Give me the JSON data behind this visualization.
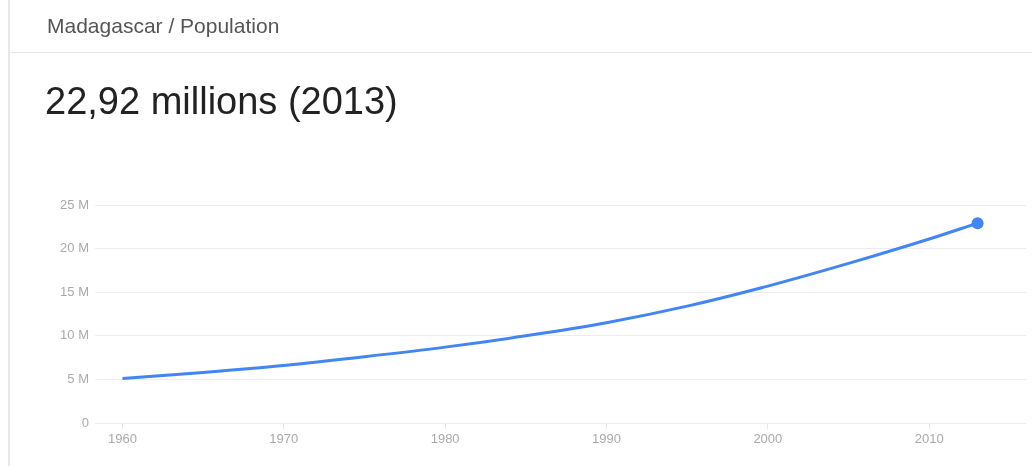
{
  "chart_data": {
    "type": "line",
    "title": "Madagascar / Population",
    "subtitle": "22,92 millions (2013)",
    "x": [
      1960,
      1965,
      1970,
      1975,
      1980,
      1985,
      1990,
      1995,
      2000,
      2005,
      2010,
      2013
    ],
    "series": [
      {
        "color": "#4285f4",
        "values": [
          5.1,
          5.8,
          6.6,
          7.6,
          8.7,
          10.0,
          11.5,
          13.4,
          15.7,
          18.3,
          21.1,
          22.92
        ]
      }
    ],
    "xlim": [
      1958.3,
      2016
    ],
    "xticks": [
      1960,
      1970,
      1980,
      1990,
      2000,
      2010
    ],
    "ylim": [
      0,
      25
    ],
    "yticks": [
      0,
      {
        "value": 5,
        "label": "5 M"
      },
      {
        "value": 10,
        "label": "10 M"
      },
      {
        "value": 15,
        "label": "15 M"
      },
      {
        "value": 20,
        "label": "20 M"
      },
      {
        "value": 25,
        "label": "25 M"
      }
    ],
    "grid": "y",
    "legend": false
  }
}
